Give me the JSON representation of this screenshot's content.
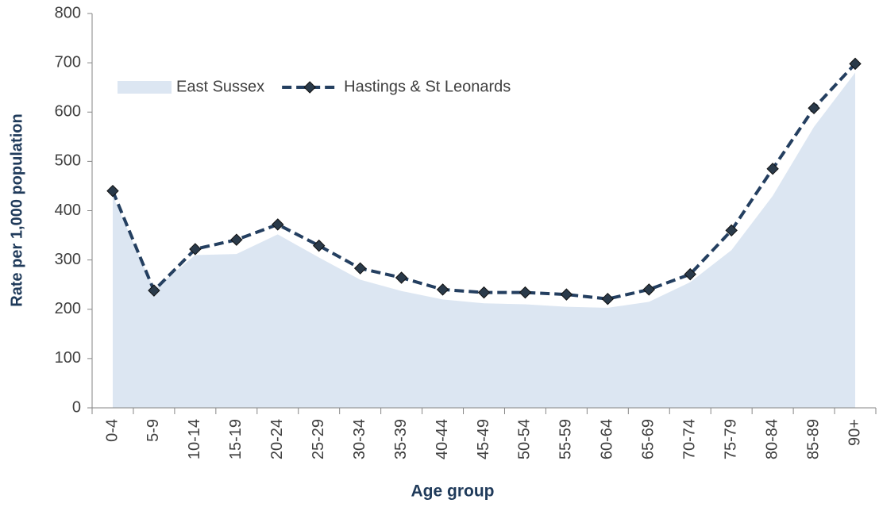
{
  "chart_data": {
    "type": "area",
    "categories": [
      "0-4",
      "5-9",
      "10-14",
      "15-19",
      "20-24",
      "25-29",
      "30-34",
      "35-39",
      "40-44",
      "45-49",
      "50-54",
      "55-59",
      "60-64",
      "65-69",
      "70-74",
      "75-79",
      "80-84",
      "85-89",
      "90+"
    ],
    "series": [
      {
        "name": "East Sussex",
        "type": "area",
        "color": "#dce6f2",
        "values": [
          430,
          240,
          310,
          312,
          352,
          305,
          260,
          237,
          220,
          212,
          210,
          205,
          203,
          215,
          255,
          320,
          430,
          570,
          680
        ]
      },
      {
        "name": "Hastings & St Leonards",
        "type": "line",
        "color": "#243f60",
        "values": [
          440,
          238,
          322,
          341,
          372,
          329,
          283,
          264,
          240,
          234,
          234,
          230,
          221,
          240,
          271,
          360,
          485,
          608,
          698
        ]
      }
    ],
    "ylim": [
      0,
      800
    ],
    "yticks": [
      0,
      100,
      200,
      300,
      400,
      500,
      600,
      700,
      800
    ],
    "ylabel": "Rate per 1,000 population",
    "xlabel": "Age group",
    "grid": false,
    "legend": "upper left"
  }
}
